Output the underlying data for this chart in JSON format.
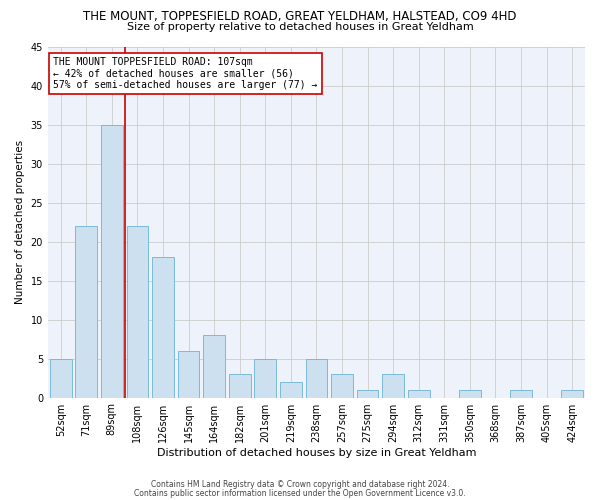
{
  "title": "THE MOUNT, TOPPESFIELD ROAD, GREAT YELDHAM, HALSTEAD, CO9 4HD",
  "subtitle": "Size of property relative to detached houses in Great Yeldham",
  "xlabel": "Distribution of detached houses by size in Great Yeldham",
  "ylabel": "Number of detached properties",
  "footnote1": "Contains HM Land Registry data © Crown copyright and database right 2024.",
  "footnote2": "Contains public sector information licensed under the Open Government Licence v3.0.",
  "categories": [
    "52sqm",
    "71sqm",
    "89sqm",
    "108sqm",
    "126sqm",
    "145sqm",
    "164sqm",
    "182sqm",
    "201sqm",
    "219sqm",
    "238sqm",
    "257sqm",
    "275sqm",
    "294sqm",
    "312sqm",
    "331sqm",
    "350sqm",
    "368sqm",
    "387sqm",
    "405sqm",
    "424sqm"
  ],
  "values": [
    5,
    22,
    35,
    22,
    18,
    6,
    8,
    3,
    5,
    2,
    5,
    3,
    1,
    3,
    1,
    0,
    1,
    0,
    1,
    0,
    1
  ],
  "bar_color": "#cce0f0",
  "bar_edge_color": "#7abbd8",
  "vline_color": "#cc0000",
  "vline_x_index": 2.5,
  "annotation_line1": "THE MOUNT TOPPESFIELD ROAD: 107sqm",
  "annotation_line2": "← 42% of detached houses are smaller (56)",
  "annotation_line3": "57% of semi-detached houses are larger (77) →",
  "annotation_box_color": "#ffffff",
  "annotation_box_edge": "#cc0000",
  "ylim": [
    0,
    45
  ],
  "yticks": [
    0,
    5,
    10,
    15,
    20,
    25,
    30,
    35,
    40,
    45
  ],
  "grid_color": "#cccccc",
  "bg_color": "#eef3fb",
  "title_fontsize": 8.5,
  "subtitle_fontsize": 8.0,
  "xlabel_fontsize": 8.0,
  "ylabel_fontsize": 7.5,
  "tick_fontsize": 7.0,
  "annot_fontsize": 7.0,
  "footnote_fontsize": 5.5
}
